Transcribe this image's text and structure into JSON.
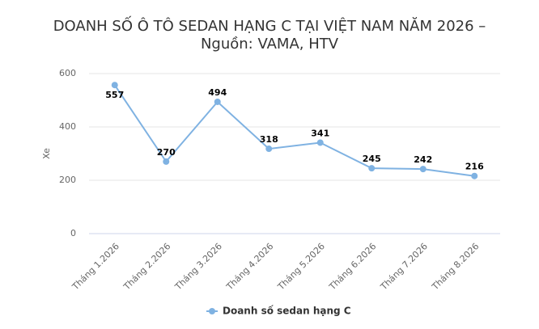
{
  "chart_data": {
    "type": "line",
    "title": "DOANH SỐ Ô TÔ SEDAN HẠNG C TẠI VIỆT NAM NĂM 2026 – Nguồn: VAMA, HTV",
    "y_label": "Xe",
    "categories": [
      "Tháng 1.2026",
      "Tháng 2.2026",
      "Tháng 3.2026",
      "Tháng 4.2026",
      "Tháng 5.2026",
      "Tháng 6.2026",
      "Tháng 7.2026",
      "Tháng 8.2026"
    ],
    "series": [
      {
        "name": "Doanh số sedan hạng C",
        "color": "#7fb2e2",
        "values": [
          557,
          270,
          494,
          318,
          341,
          245,
          242,
          216
        ]
      }
    ],
    "ylim": [
      0,
      600
    ],
    "yticks": [
      0,
      200,
      400,
      600
    ],
    "grid": true,
    "legend": "bottom"
  }
}
